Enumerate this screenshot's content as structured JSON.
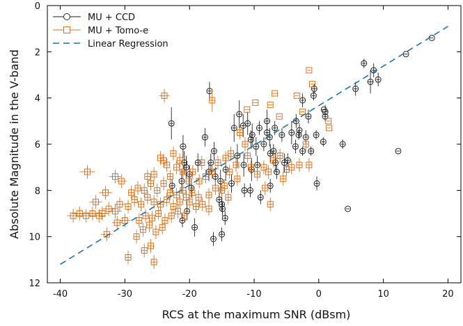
{
  "chart_data": {
    "type": "scatter",
    "xlabel": "RCS at the maximum SNR (dBsm)",
    "ylabel": "Absolute Magnitude in the V-band",
    "xlim": [
      -42,
      22
    ],
    "ylim": [
      12,
      0
    ],
    "y_inverted": true,
    "grid": false,
    "legend_position": "top-left",
    "x_ticks": [
      -40,
      -30,
      -20,
      -10,
      0,
      10,
      20
    ],
    "y_ticks": [
      0,
      2,
      4,
      6,
      8,
      10,
      12
    ],
    "series": [
      {
        "name": "MU + CCD",
        "marker": "circle",
        "color": "#222222",
        "points": [
          [
            17.5,
            1.4,
            0.2,
            0.0
          ],
          [
            13.5,
            2.1,
            0.3,
            0.0
          ],
          [
            7.0,
            2.5,
            0.3,
            0.2
          ],
          [
            8.5,
            2.8,
            0.3,
            0.3
          ],
          [
            9.2,
            3.2,
            0.3,
            0.3
          ],
          [
            8.0,
            3.3,
            0.4,
            0.5
          ],
          [
            5.7,
            3.6,
            0.3,
            0.3
          ],
          [
            1.0,
            4.6,
            0.4,
            0.3
          ],
          [
            0.8,
            4.5,
            0.4,
            0.0
          ],
          [
            -0.7,
            3.6,
            0.4,
            0.2
          ],
          [
            -0.8,
            3.9,
            0.3,
            0.2
          ],
          [
            -2.5,
            4.1,
            0.3,
            0.3
          ],
          [
            -1.6,
            4.8,
            0.3,
            0.3
          ],
          [
            -3.5,
            5.0,
            0.3,
            0.3
          ],
          [
            -4.2,
            5.5,
            0.3,
            0.5
          ],
          [
            -3.1,
            5.6,
            0.3,
            0.2
          ],
          [
            -0.4,
            5.6,
            0.3,
            0.2
          ],
          [
            1.0,
            4.8,
            0.3,
            0.2
          ],
          [
            -2.5,
            6.3,
            0.3,
            0.2
          ],
          [
            -1.2,
            6.3,
            0.3,
            0.2
          ],
          [
            0.7,
            5.9,
            0.3,
            0.2
          ],
          [
            3.7,
            6.0,
            0.3,
            0.2
          ],
          [
            12.3,
            6.3,
            0.3,
            0.0
          ],
          [
            -0.3,
            7.7,
            0.3,
            0.3
          ],
          [
            4.5,
            8.8,
            0.3,
            0.0
          ],
          [
            -8.0,
            5.0,
            0.3,
            0.5
          ],
          [
            -9.2,
            5.3,
            0.3,
            0.3
          ],
          [
            -8.0,
            5.5,
            0.3,
            0.3
          ],
          [
            -10.3,
            5.6,
            0.3,
            0.5
          ],
          [
            -10.5,
            5.8,
            0.3,
            0.4
          ],
          [
            -11.0,
            5.1,
            0.3,
            0.5
          ],
          [
            -11.7,
            5.2,
            0.3,
            0.5
          ],
          [
            -12.3,
            4.7,
            0.3,
            0.6
          ],
          [
            -13.1,
            5.3,
            0.3,
            0.6
          ],
          [
            -9.7,
            6.1,
            0.3,
            0.4
          ],
          [
            -8.5,
            6.0,
            0.3,
            0.3
          ],
          [
            -7.6,
            5.7,
            0.3,
            0.4
          ],
          [
            -7.5,
            6.4,
            0.3,
            0.4
          ],
          [
            -6.7,
            6.8,
            0.3,
            0.4
          ],
          [
            -6.5,
            7.2,
            0.3,
            0.3
          ],
          [
            -5.3,
            6.8,
            0.3,
            0.4
          ],
          [
            -12.6,
            6.5,
            0.3,
            0.5
          ],
          [
            -11.6,
            6.9,
            0.3,
            0.5
          ],
          [
            -10.4,
            7.1,
            0.3,
            0.5
          ],
          [
            -9.5,
            6.9,
            0.3,
            0.4
          ],
          [
            -11.5,
            8.0,
            0.3,
            0.3
          ],
          [
            -10.6,
            8.0,
            0.3,
            0.3
          ],
          [
            -9.0,
            8.3,
            0.3,
            0.3
          ],
          [
            -7.5,
            7.8,
            0.3,
            0.3
          ],
          [
            -13.5,
            7.7,
            0.3,
            0.4
          ],
          [
            -14.4,
            7.1,
            0.3,
            0.5
          ],
          [
            -15.2,
            7.6,
            0.3,
            0.5
          ],
          [
            -15.4,
            8.4,
            0.3,
            0.3
          ],
          [
            -15.0,
            8.6,
            0.3,
            0.3
          ],
          [
            -14.9,
            8.8,
            0.3,
            0.3
          ],
          [
            -16.0,
            7.4,
            0.3,
            0.4
          ],
          [
            -16.7,
            6.8,
            0.3,
            0.4
          ],
          [
            -16.2,
            6.3,
            0.3,
            0.4
          ],
          [
            -17.0,
            7.2,
            0.3,
            0.4
          ],
          [
            -17.6,
            5.7,
            0.3,
            0.4
          ],
          [
            -16.9,
            3.7,
            0.3,
            0.4
          ],
          [
            -22.8,
            5.1,
            0.3,
            0.7
          ],
          [
            -21.0,
            6.1,
            0.3,
            0.5
          ],
          [
            -20.8,
            6.8,
            0.3,
            0.5
          ],
          [
            -20.5,
            7.0,
            0.3,
            0.5
          ],
          [
            -19.7,
            7.9,
            0.3,
            0.4
          ],
          [
            -20.4,
            8.9,
            0.3,
            0.4
          ],
          [
            -21.1,
            9.3,
            0.3,
            0.3
          ],
          [
            -19.2,
            9.6,
            0.3,
            0.4
          ],
          [
            -14.5,
            9.2,
            0.3,
            0.3
          ],
          [
            -16.3,
            10.1,
            0.3,
            0.3
          ],
          [
            -15.0,
            9.9,
            0.3,
            0.3
          ],
          [
            -20.0,
            7.3,
            0.3,
            0.4
          ],
          [
            -18.7,
            6.8,
            0.3,
            0.4
          ],
          [
            -22.7,
            7.8,
            0.3,
            0.3
          ],
          [
            -21.2,
            7.6,
            0.3,
            0.5
          ],
          [
            -5.7,
            5.6,
            0.3,
            0.3
          ],
          [
            -6.8,
            5.3,
            0.3,
            0.3
          ],
          [
            -7.0,
            6.3,
            0.3,
            0.3
          ],
          [
            -4.8,
            6.7,
            0.3,
            0.3
          ],
          [
            -3.6,
            6.1,
            0.3,
            0.3
          ],
          [
            -3.0,
            5.4,
            0.3,
            0.3
          ],
          [
            -2.0,
            5.7,
            0.3,
            0.3
          ]
        ]
      },
      {
        "name": "MU + Tomo-e",
        "marker": "square",
        "color": "#d9711f",
        "points": [
          [
            -23.9,
            3.9,
            0.8,
            0.3
          ],
          [
            -16.5,
            4.1,
            0.4,
            0.5
          ],
          [
            -1.5,
            2.8,
            0.3,
            0.0
          ],
          [
            -1.0,
            3.4,
            0.3,
            0.0
          ],
          [
            1.5,
            5.0,
            0.3,
            0.0
          ],
          [
            1.6,
            5.3,
            0.3,
            0.0
          ],
          [
            -3.4,
            3.9,
            0.3,
            0.0
          ],
          [
            -2.5,
            4.6,
            0.3,
            0.0
          ],
          [
            -6.8,
            3.8,
            0.4,
            0.0
          ],
          [
            -7.5,
            4.3,
            0.4,
            0.0
          ],
          [
            -6.1,
            4.8,
            0.3,
            0.0
          ],
          [
            -9.8,
            4.2,
            0.4,
            0.0
          ],
          [
            -11.1,
            4.5,
            0.4,
            0.0
          ],
          [
            -12.2,
            5.5,
            0.4,
            0.3
          ],
          [
            -11.4,
            6.0,
            0.4,
            0.3
          ],
          [
            -11.0,
            6.5,
            0.4,
            0.3
          ],
          [
            -10.5,
            7.0,
            0.4,
            0.3
          ],
          [
            -9.5,
            7.3,
            0.4,
            0.3
          ],
          [
            -8.5,
            7.0,
            0.4,
            0.3
          ],
          [
            -7.8,
            7.2,
            0.4,
            0.3
          ],
          [
            -7.0,
            6.7,
            0.4,
            0.3
          ],
          [
            -6.0,
            6.5,
            0.4,
            0.3
          ],
          [
            -5.0,
            7.1,
            0.4,
            0.3
          ],
          [
            -4.2,
            7.0,
            0.4,
            0.3
          ],
          [
            -3.0,
            6.9,
            0.4,
            0.3
          ],
          [
            -2.0,
            6.0,
            0.4,
            0.3
          ],
          [
            -1.5,
            6.9,
            0.4,
            0.3
          ],
          [
            -8.3,
            7.9,
            0.4,
            0.3
          ],
          [
            -7.5,
            8.6,
            0.4,
            0.3
          ],
          [
            -5.5,
            7.5,
            0.4,
            0.3
          ],
          [
            -12.8,
            6.9,
            0.4,
            0.3
          ],
          [
            -13.6,
            6.4,
            0.4,
            0.3
          ],
          [
            -14.4,
            6.6,
            0.4,
            0.3
          ],
          [
            -13.8,
            7.2,
            0.4,
            0.3
          ],
          [
            -12.6,
            7.5,
            0.4,
            0.3
          ],
          [
            -14.6,
            7.8,
            0.4,
            0.3
          ],
          [
            -15.6,
            6.8,
            0.4,
            0.3
          ],
          [
            -16.5,
            7.2,
            0.4,
            0.3
          ],
          [
            -17.5,
            7.4,
            0.4,
            0.3
          ],
          [
            -18.1,
            6.8,
            0.4,
            0.3
          ],
          [
            -16.0,
            7.9,
            0.4,
            0.3
          ],
          [
            -17.0,
            8.2,
            0.4,
            0.3
          ],
          [
            -18.6,
            8.3,
            0.4,
            0.3
          ],
          [
            -19.6,
            8.1,
            0.4,
            0.3
          ],
          [
            -20.1,
            7.6,
            0.4,
            0.3
          ],
          [
            -21.0,
            7.2,
            0.4,
            0.3
          ],
          [
            -22.0,
            7.0,
            0.4,
            0.3
          ],
          [
            -23.0,
            7.4,
            0.4,
            0.3
          ],
          [
            -24.0,
            7.7,
            0.4,
            0.3
          ],
          [
            -25.0,
            8.0,
            0.4,
            0.3
          ],
          [
            -23.5,
            6.9,
            0.4,
            0.3
          ],
          [
            -24.5,
            6.6,
            0.4,
            0.3
          ],
          [
            -22.5,
            6.4,
            0.4,
            0.3
          ],
          [
            -21.5,
            6.7,
            0.4,
            0.3
          ],
          [
            -20.5,
            8.3,
            0.4,
            0.3
          ],
          [
            -21.5,
            8.5,
            0.4,
            0.3
          ],
          [
            -22.5,
            8.7,
            0.4,
            0.3
          ],
          [
            -23.5,
            8.4,
            0.4,
            0.3
          ],
          [
            -24.5,
            8.6,
            0.4,
            0.3
          ],
          [
            -25.5,
            8.5,
            0.4,
            0.3
          ],
          [
            -26.5,
            8.3,
            0.4,
            0.3
          ],
          [
            -27.5,
            8.6,
            0.4,
            0.3
          ],
          [
            -28.5,
            8.4,
            0.4,
            0.3
          ],
          [
            -29.5,
            8.7,
            0.4,
            0.3
          ],
          [
            -26.0,
            7.7,
            0.4,
            0.3
          ],
          [
            -27.0,
            8.0,
            0.4,
            0.3
          ],
          [
            -28.0,
            7.9,
            0.4,
            0.3
          ],
          [
            -29.0,
            8.1,
            0.4,
            0.3
          ],
          [
            -25.5,
            7.3,
            0.4,
            0.3
          ],
          [
            -26.5,
            7.4,
            0.4,
            0.3
          ],
          [
            -24.8,
            9.0,
            0.4,
            0.3
          ],
          [
            -25.8,
            9.2,
            0.4,
            0.3
          ],
          [
            -26.8,
            9.1,
            0.4,
            0.3
          ],
          [
            -27.8,
            9.3,
            0.4,
            0.3
          ],
          [
            -23.8,
            9.3,
            0.4,
            0.3
          ],
          [
            -22.8,
            9.1,
            0.4,
            0.3
          ],
          [
            -21.8,
            8.9,
            0.4,
            0.3
          ],
          [
            -20.8,
            9.1,
            0.4,
            0.3
          ],
          [
            -24.2,
            9.6,
            0.4,
            0.3
          ],
          [
            -25.2,
            9.8,
            0.4,
            0.3
          ],
          [
            -26.2,
            9.5,
            0.4,
            0.3
          ],
          [
            -27.2,
            9.7,
            0.4,
            0.3
          ],
          [
            -28.2,
            10.0,
            0.4,
            0.3
          ],
          [
            -26.0,
            10.4,
            0.4,
            0.3
          ],
          [
            -27.0,
            10.6,
            0.4,
            0.3
          ],
          [
            -25.5,
            11.1,
            0.4,
            0.3
          ],
          [
            -29.5,
            10.9,
            0.4,
            0.3
          ],
          [
            -30.8,
            8.6,
            0.8,
            0.3
          ],
          [
            -31.5,
            8.9,
            1.0,
            0.3
          ],
          [
            -32.5,
            8.8,
            1.0,
            0.3
          ],
          [
            -33.5,
            9.0,
            1.0,
            0.3
          ],
          [
            -34.0,
            9.1,
            1.0,
            0.3
          ],
          [
            -35.0,
            9.0,
            1.0,
            0.3
          ],
          [
            -36.0,
            9.1,
            1.0,
            0.3
          ],
          [
            -37.0,
            9.0,
            1.2,
            0.3
          ],
          [
            -38.0,
            9.1,
            1.0,
            0.3
          ],
          [
            -35.8,
            7.2,
            1.2,
            0.3
          ],
          [
            -31.5,
            7.4,
            0.9,
            0.3
          ],
          [
            -30.5,
            7.6,
            0.8,
            0.3
          ],
          [
            -33.0,
            8.1,
            1.0,
            0.3
          ],
          [
            -34.5,
            8.5,
            1.0,
            0.3
          ],
          [
            -32.8,
            9.9,
            0.9,
            0.3
          ],
          [
            -31.2,
            9.4,
            0.8,
            0.3
          ],
          [
            -30.0,
            9.3,
            0.8,
            0.3
          ],
          [
            -24.0,
            6.7,
            0.5,
            0.3
          ],
          [
            -23.0,
            8.1,
            0.4,
            0.3
          ],
          [
            -22.0,
            8.2,
            0.4,
            0.3
          ],
          [
            -21.0,
            8.0,
            0.4,
            0.3
          ],
          [
            -20.0,
            8.5,
            0.4,
            0.3
          ],
          [
            -19.0,
            8.7,
            0.4,
            0.3
          ],
          [
            -18.0,
            8.6,
            0.4,
            0.3
          ],
          [
            -17.0,
            8.8,
            0.4,
            0.3
          ],
          [
            -19.5,
            7.2,
            0.4,
            0.3
          ],
          [
            -18.5,
            7.6,
            0.4,
            0.3
          ],
          [
            -15.0,
            8.0,
            0.4,
            0.3
          ],
          [
            -14.0,
            8.3,
            0.4,
            0.3
          ]
        ]
      },
      {
        "name": "Linear Regression",
        "type": "line",
        "style": "dashed",
        "color": "#1a75a8",
        "x": [
          -40,
          20
        ],
        "y": [
          11.2,
          0.9
        ]
      }
    ]
  }
}
